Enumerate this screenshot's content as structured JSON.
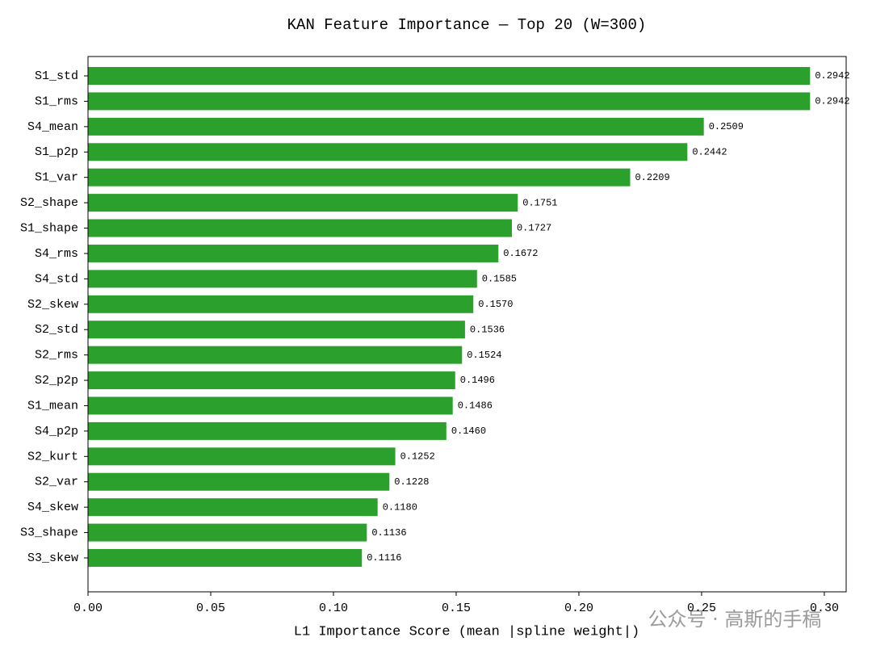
{
  "chart_data": {
    "type": "barh",
    "title": "KAN Feature Importance — Top 20  (W=300)",
    "x_label": "L1 Importance Score (mean |spline weight|)",
    "categories": [
      "S1_std",
      "S1_rms",
      "S4_mean",
      "S1_p2p",
      "S1_var",
      "S2_shape",
      "S1_shape",
      "S4_rms",
      "S4_std",
      "S2_skew",
      "S2_std",
      "S2_rms",
      "S2_p2p",
      "S1_mean",
      "S4_p2p",
      "S2_kurt",
      "S2_var",
      "S4_skew",
      "S3_shape",
      "S3_skew"
    ],
    "values": [
      0.2942,
      0.2942,
      0.2509,
      0.2442,
      0.2209,
      0.1751,
      0.1727,
      0.1672,
      0.1585,
      0.157,
      0.1536,
      0.1524,
      0.1496,
      0.1486,
      0.146,
      0.1252,
      0.1228,
      0.118,
      0.1136,
      0.1116
    ],
    "value_labels": [
      "0.2942",
      "0.2942",
      "0.2509",
      "0.2442",
      "0.2209",
      "0.1751",
      "0.1727",
      "0.1672",
      "0.1585",
      "0.1570",
      "0.1536",
      "0.1524",
      "0.1496",
      "0.1486",
      "0.1460",
      "0.1252",
      "0.1228",
      "0.1180",
      "0.1136",
      "0.1116"
    ],
    "color": "#2ca02c",
    "xlim": [
      0,
      0.3089
    ],
    "xticks": [
      {
        "value": 0,
        "label": "0.00"
      },
      {
        "value": 0.05,
        "label": "0.05"
      },
      {
        "value": 0.1,
        "label": "0.10"
      },
      {
        "value": 0.15,
        "label": "0.15"
      },
      {
        "value": 0.2,
        "label": "0.20"
      },
      {
        "value": 0.25,
        "label": "0.25"
      },
      {
        "value": 0.3,
        "label": "0.30"
      }
    ],
    "grid": false,
    "watermark": "公众号 · 高斯的手稿"
  }
}
